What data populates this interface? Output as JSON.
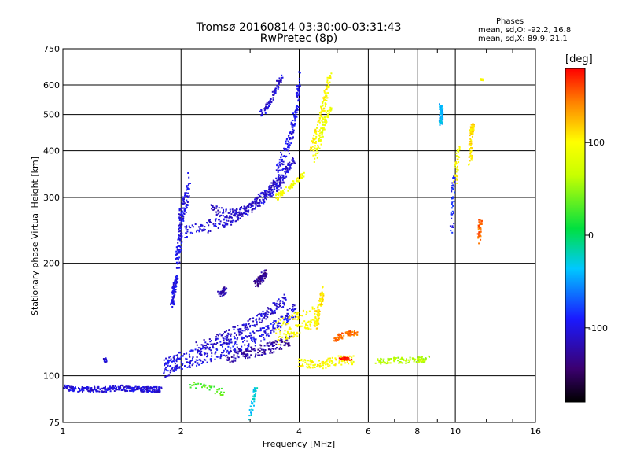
{
  "header": {
    "title_line1": "Tromsø 20160814 03:30:00-03:31:43",
    "title_line2": "RwPretec (8p)",
    "phases_title": "Phases",
    "phases_o": "mean, sd,O: -92.2, 16.8",
    "phases_x": "mean, sd,X:  89.9, 21.1"
  },
  "colorbar": {
    "unit": "[deg]",
    "range": [
      -180,
      180
    ],
    "ticks": [
      100,
      0,
      -100
    ],
    "tick_labels": [
      "100",
      "0",
      "-100"
    ]
  },
  "colors": {
    "axis": "#000000",
    "background": "#ffffff"
  },
  "chart_data": {
    "type": "scatter",
    "title": "Tromsø 20160814 03:30:00-03:31:43",
    "subtitle": "RwPretec (8p)",
    "xlabel": "Frequency [MHz]",
    "ylabel": "Stationary phase Virtual Height [km]",
    "xscale": "log",
    "yscale": "log",
    "xlim": [
      1,
      16
    ],
    "ylim": [
      75,
      750
    ],
    "xticks": [
      1,
      2,
      4,
      6,
      8,
      10,
      16
    ],
    "xtick_labels": [
      "1",
      "2",
      "4",
      "6",
      "8",
      "10",
      "16"
    ],
    "yticks": [
      75,
      100,
      200,
      300,
      400,
      500,
      600,
      750
    ],
    "ytick_labels": [
      "75",
      "100",
      "200",
      "300",
      "400",
      "500",
      "600",
      "750"
    ],
    "grid": true,
    "color_dimension": "phase [deg]",
    "traces": [
      {
        "x": [
          1.0,
          1.1,
          1.2,
          1.3,
          1.4,
          1.5,
          1.6,
          1.7,
          1.78
        ],
        "y": [
          93,
          92,
          92,
          92,
          93,
          92,
          92,
          92,
          92
        ],
        "phase": -105,
        "spread_y": 1.5
      },
      {
        "x": [
          1.28
        ],
        "y": [
          110
        ],
        "phase": -105,
        "spread_y": 1.5
      },
      {
        "x": [
          1.8,
          1.9,
          2.0,
          2.2,
          2.4,
          2.7,
          3.0,
          3.3,
          3.6,
          3.9
        ],
        "y": [
          104,
          107,
          110,
          112,
          116,
          120,
          124,
          130,
          138,
          150
        ],
        "phase": -100,
        "spread_y": 6
      },
      {
        "x": [
          2.2,
          2.5,
          2.8,
          3.1,
          3.4,
          3.7
        ],
        "y": [
          118,
          125,
          132,
          140,
          150,
          160
        ],
        "phase": -110,
        "spread_y": 5
      },
      {
        "x": [
          2.6,
          2.9,
          3.2,
          3.5,
          3.8
        ],
        "y": [
          112,
          115,
          117,
          120,
          125
        ],
        "phase": -125,
        "spread_y": 4
      },
      {
        "x": [
          1.9,
          1.92,
          1.95
        ],
        "y": [
          155,
          170,
          185
        ],
        "phase": -100,
        "spread_y": 4
      },
      {
        "x": [
          3.1,
          3.2,
          3.3
        ],
        "y": [
          175,
          182,
          190
        ],
        "phase": -130,
        "spread_y": 4
      },
      {
        "x": [
          2.5,
          2.6
        ],
        "y": [
          165,
          170
        ],
        "phase": -120,
        "spread_y": 3
      },
      {
        "x": [
          1.95,
          1.98,
          2.0,
          2.05,
          2.1
        ],
        "y": [
          200,
          230,
          260,
          290,
          330
        ],
        "phase": -100,
        "spread_y": 20
      },
      {
        "x": [
          2.0,
          2.3,
          2.6,
          2.9,
          3.2,
          3.5,
          3.8
        ],
        "y": [
          240,
          250,
          260,
          275,
          295,
          320,
          350
        ],
        "phase": -105,
        "spread_y": 10
      },
      {
        "x": [
          2.4,
          2.7,
          3.0,
          3.3,
          3.6,
          3.9
        ],
        "y": [
          280,
          270,
          280,
          310,
          340,
          380
        ],
        "phase": -110,
        "spread_y": 8
      },
      {
        "x": [
          3.5,
          3.7,
          3.85,
          3.95,
          4.0
        ],
        "y": [
          350,
          400,
          450,
          520,
          640
        ],
        "phase": -100,
        "spread_y": 20
      },
      {
        "x": [
          3.2,
          3.4,
          3.6
        ],
        "y": [
          500,
          550,
          630
        ],
        "phase": -105,
        "spread_y": 10
      },
      {
        "x": [
          3.5,
          3.8,
          4.1
        ],
        "y": [
          300,
          320,
          345
        ],
        "phase": 95,
        "spread_y": 5
      },
      {
        "x": [
          4.3,
          4.5,
          4.65,
          4.8
        ],
        "y": [
          400,
          470,
          550,
          640
        ],
        "phase": 100,
        "spread_y": 15
      },
      {
        "x": [
          4.4,
          4.6,
          4.8
        ],
        "y": [
          380,
          460,
          520
        ],
        "phase": 90,
        "spread_y": 8
      },
      {
        "x": [
          3.5,
          3.8,
          4.1,
          4.5
        ],
        "y": [
          130,
          135,
          140,
          145
        ],
        "phase": 100,
        "spread_y": 10
      },
      {
        "x": [
          4.0,
          4.5,
          5.0,
          5.5
        ],
        "y": [
          108,
          107,
          110,
          110
        ],
        "phase": 100,
        "spread_y": 3
      },
      {
        "x": [
          6.3,
          7.0,
          8.0,
          8.5
        ],
        "y": [
          109,
          110,
          110,
          111
        ],
        "phase": 60,
        "spread_y": 2
      },
      {
        "x": [
          5.1,
          5.4
        ],
        "y": [
          111,
          111
        ],
        "phase": 175,
        "spread_y": 1
      },
      {
        "x": [
          4.9,
          5.3,
          5.6
        ],
        "y": [
          125,
          130,
          130
        ],
        "phase": 150,
        "spread_y": 2
      },
      {
        "x": [
          4.4,
          4.5,
          4.6
        ],
        "y": [
          135,
          150,
          170
        ],
        "phase": 110,
        "spread_y": 5
      },
      {
        "x": [
          9.2,
          9.2,
          9.2
        ],
        "y": [
          470,
          500,
          530
        ],
        "phase": -40,
        "spread_y": 5
      },
      {
        "x": [
          10.0,
          10.2
        ],
        "y": [
          330,
          410
        ],
        "phase": 100,
        "spread_y": 5
      },
      {
        "x": [
          10.9,
          11.0,
          11.1
        ],
        "y": [
          370,
          450,
          470
        ],
        "phase": 110,
        "spread_y": 5
      },
      {
        "x": [
          11.7
        ],
        "y": [
          620
        ],
        "phase": 100,
        "spread_y": 3
      },
      {
        "x": [
          11.5,
          11.6
        ],
        "y": [
          230,
          260
        ],
        "phase": 150,
        "spread_y": 5
      },
      {
        "x": [
          9.8,
          9.9
        ],
        "y": [
          240,
          340
        ],
        "phase": -90,
        "spread_y": 5
      },
      {
        "x": [
          3.0,
          3.1
        ],
        "y": [
          78,
          92
        ],
        "phase": -30,
        "spread_y": 2
      },
      {
        "x": [
          2.6,
          2.1
        ],
        "y": [
          90,
          95
        ],
        "phase": 30,
        "spread_y": 2
      }
    ]
  }
}
